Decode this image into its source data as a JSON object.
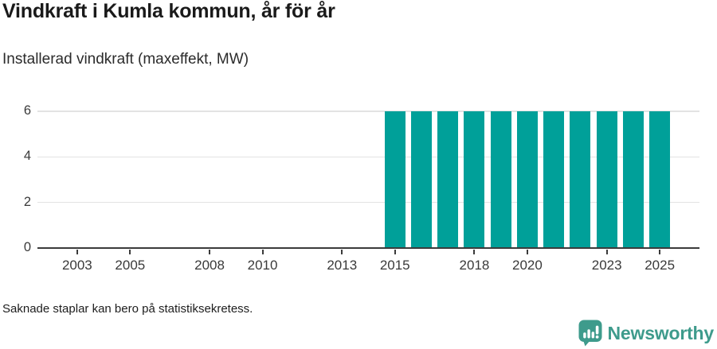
{
  "header": {
    "title": "Vindkraft i Kumla kommun, år för år",
    "subtitle": "Installerad vindkraft (maxeffekt, MW)"
  },
  "chart_data": {
    "type": "bar",
    "title": "Vindkraft i Kumla kommun, år för år",
    "subtitle": "Installerad vindkraft (maxeffekt, MW)",
    "unit": "MW",
    "x": [
      2015,
      2016,
      2017,
      2018,
      2019,
      2020,
      2021,
      2022,
      2023,
      2024,
      2025
    ],
    "values": [
      6,
      6,
      6,
      6,
      6,
      6,
      6,
      6,
      6,
      6,
      6
    ],
    "xlim": [
      2001.5,
      2026.5
    ],
    "ylim": [
      0,
      6
    ],
    "yticks": [
      0,
      2,
      4,
      6
    ],
    "xticks": [
      2003,
      2005,
      2008,
      2010,
      2013,
      2015,
      2018,
      2020,
      2023,
      2025
    ],
    "grid": true,
    "legend": false,
    "bar_color": "#00A099"
  },
  "footer": {
    "note": "Saknade staplar kan bero på statistiksekretess."
  },
  "brand": {
    "name": "Newsworthy",
    "color": "#3E9B8C"
  },
  "colors": {
    "bar": "#00A099",
    "axis": "#3B3B3B",
    "grid": "#E3E3E3",
    "tick_label": "#3A3A3A",
    "title": "#1A1A1A",
    "background": "#FFFFFF"
  }
}
